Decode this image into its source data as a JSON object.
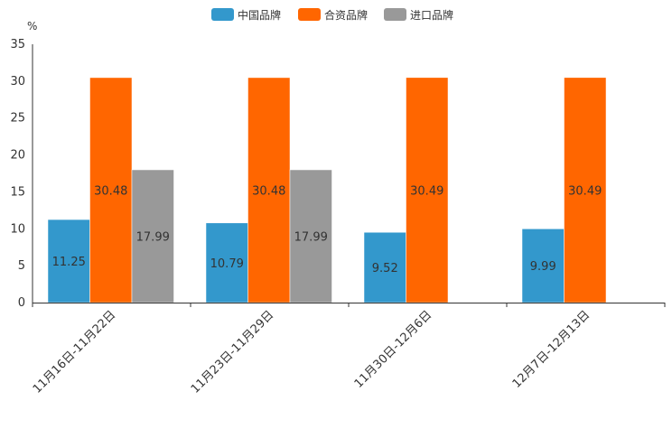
{
  "chart_data": {
    "type": "bar",
    "unit_label": "%",
    "categories": [
      "11月16日-11月22日",
      "11月23日-11月29日",
      "11月30日-12月6日",
      "12月7日-12月13日"
    ],
    "series": [
      {
        "name": "中国品牌",
        "color": "#3398cc",
        "values": [
          11.25,
          10.79,
          9.52,
          9.99
        ],
        "labels": [
          "11.25",
          "10.79",
          "9.52",
          "9.99"
        ]
      },
      {
        "name": "合资品牌",
        "color": "#ff6600",
        "values": [
          30.48,
          30.48,
          30.49,
          30.49
        ],
        "labels": [
          "30.48",
          "30.48",
          "30.49",
          "30.49"
        ]
      },
      {
        "name": "进口品牌",
        "color": "#999999",
        "values": [
          17.99,
          17.99,
          null,
          null
        ],
        "labels": [
          "17.99",
          "17.99",
          null,
          null
        ]
      }
    ],
    "ylim": [
      0,
      35
    ],
    "yticks": [
      "0",
      "5",
      "10",
      "15",
      "20",
      "25",
      "30",
      "35"
    ],
    "legend_position": "top-center"
  }
}
